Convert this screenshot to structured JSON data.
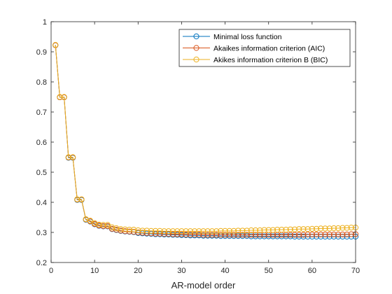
{
  "chart_data": {
    "type": "line",
    "title": "",
    "xlabel": "AR-model order",
    "ylabel": "",
    "xlim": [
      0,
      70
    ],
    "ylim": [
      0.2,
      1
    ],
    "xticks": [
      0,
      10,
      20,
      30,
      40,
      50,
      60,
      70
    ],
    "yticks": [
      0.2,
      0.3,
      0.4,
      0.5,
      0.6,
      0.7,
      0.8,
      0.9,
      1
    ],
    "ytick_labels": [
      "0.2",
      "0.3",
      "0.4",
      "0.5",
      "0.6",
      "0.7",
      "0.8",
      "0.9",
      "1"
    ],
    "grid": false,
    "legend_position": "top-right",
    "series": [
      {
        "name": "Minimal loss function",
        "color": "#0072BD",
        "x": [
          1,
          2,
          3,
          4,
          5,
          6,
          7,
          8,
          9,
          10,
          11,
          12,
          13,
          14,
          15,
          16,
          17,
          18,
          19,
          20,
          21,
          22,
          23,
          24,
          25,
          26,
          27,
          28,
          29,
          30,
          31,
          32,
          33,
          34,
          35,
          36,
          37,
          38,
          39,
          40,
          41,
          42,
          43,
          44,
          45,
          46,
          47,
          48,
          49,
          50,
          51,
          52,
          53,
          54,
          55,
          56,
          57,
          58,
          59,
          60,
          61,
          62,
          63,
          64,
          65,
          66,
          67,
          68,
          69,
          70
        ],
        "y": [
          0.922,
          0.749,
          0.749,
          0.548,
          0.548,
          0.408,
          0.408,
          0.342,
          0.336,
          0.327,
          0.322,
          0.32,
          0.32,
          0.311,
          0.308,
          0.305,
          0.303,
          0.302,
          0.301,
          0.298,
          0.297,
          0.296,
          0.295,
          0.294,
          0.294,
          0.293,
          0.293,
          0.292,
          0.292,
          0.291,
          0.291,
          0.29,
          0.29,
          0.29,
          0.289,
          0.289,
          0.289,
          0.289,
          0.288,
          0.288,
          0.288,
          0.288,
          0.288,
          0.288,
          0.288,
          0.287,
          0.287,
          0.287,
          0.287,
          0.287,
          0.287,
          0.287,
          0.287,
          0.287,
          0.287,
          0.286,
          0.286,
          0.286,
          0.286,
          0.286,
          0.286,
          0.286,
          0.286,
          0.286,
          0.286,
          0.286,
          0.286,
          0.286,
          0.286,
          0.286
        ]
      },
      {
        "name": "Akaikes information criterion (AIC)",
        "color": "#D95319",
        "x": [
          1,
          2,
          3,
          4,
          5,
          6,
          7,
          8,
          9,
          10,
          11,
          12,
          13,
          14,
          15,
          16,
          17,
          18,
          19,
          20,
          21,
          22,
          23,
          24,
          25,
          26,
          27,
          28,
          29,
          30,
          31,
          32,
          33,
          34,
          35,
          36,
          37,
          38,
          39,
          40,
          41,
          42,
          43,
          44,
          45,
          46,
          47,
          48,
          49,
          50,
          51,
          52,
          53,
          54,
          55,
          56,
          57,
          58,
          59,
          60,
          61,
          62,
          63,
          64,
          65,
          66,
          67,
          68,
          69,
          70
        ],
        "y": [
          0.922,
          0.749,
          0.749,
          0.549,
          0.549,
          0.409,
          0.409,
          0.343,
          0.337,
          0.328,
          0.323,
          0.321,
          0.321,
          0.312,
          0.309,
          0.306,
          0.304,
          0.303,
          0.302,
          0.3,
          0.299,
          0.298,
          0.297,
          0.296,
          0.296,
          0.295,
          0.295,
          0.294,
          0.294,
          0.294,
          0.293,
          0.293,
          0.293,
          0.293,
          0.292,
          0.292,
          0.292,
          0.292,
          0.292,
          0.292,
          0.292,
          0.292,
          0.292,
          0.292,
          0.292,
          0.292,
          0.292,
          0.292,
          0.292,
          0.292,
          0.292,
          0.292,
          0.292,
          0.292,
          0.292,
          0.292,
          0.292,
          0.292,
          0.293,
          0.293,
          0.293,
          0.293,
          0.293,
          0.293,
          0.293,
          0.293,
          0.293,
          0.293,
          0.294,
          0.294
        ]
      },
      {
        "name": "Akikes information criterion B (BIC)",
        "color": "#EDB120",
        "x": [
          1,
          2,
          3,
          4,
          5,
          6,
          7,
          8,
          9,
          10,
          11,
          12,
          13,
          14,
          15,
          16,
          17,
          18,
          19,
          20,
          21,
          22,
          23,
          24,
          25,
          26,
          27,
          28,
          29,
          30,
          31,
          32,
          33,
          34,
          35,
          36,
          37,
          38,
          39,
          40,
          41,
          42,
          43,
          44,
          45,
          46,
          47,
          48,
          49,
          50,
          51,
          52,
          53,
          54,
          55,
          56,
          57,
          58,
          59,
          60,
          61,
          62,
          63,
          64,
          65,
          66,
          67,
          68,
          69,
          70
        ],
        "y": [
          0.923,
          0.75,
          0.75,
          0.55,
          0.55,
          0.41,
          0.41,
          0.344,
          0.339,
          0.331,
          0.326,
          0.325,
          0.325,
          0.317,
          0.314,
          0.311,
          0.31,
          0.309,
          0.309,
          0.307,
          0.306,
          0.306,
          0.305,
          0.305,
          0.305,
          0.304,
          0.304,
          0.304,
          0.304,
          0.304,
          0.304,
          0.304,
          0.304,
          0.304,
          0.304,
          0.304,
          0.304,
          0.304,
          0.305,
          0.305,
          0.305,
          0.305,
          0.306,
          0.306,
          0.306,
          0.307,
          0.307,
          0.307,
          0.308,
          0.308,
          0.308,
          0.309,
          0.309,
          0.309,
          0.31,
          0.31,
          0.311,
          0.311,
          0.311,
          0.312,
          0.312,
          0.313,
          0.313,
          0.313,
          0.314,
          0.314,
          0.315,
          0.315,
          0.316,
          0.316
        ]
      }
    ]
  }
}
